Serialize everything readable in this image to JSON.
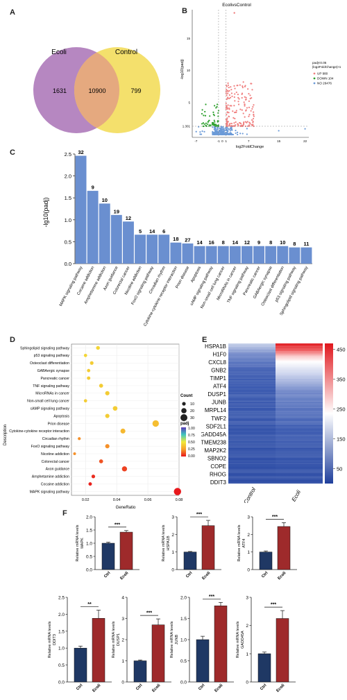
{
  "panel_labels": {
    "a": "A",
    "b": "B",
    "c": "C",
    "d": "D",
    "e": "E",
    "f": "F"
  },
  "colors": {
    "venn_ecoli": "#b687c1",
    "venn_control": "#f4e06c",
    "bar": "#6a8fd0",
    "up": "#f08080",
    "down": "#2ca02c",
    "no": "#6c9bd8",
    "ctrl": "#1f3864",
    "ecoli": "#9e2a2b"
  },
  "chart_data": [
    {
      "type": "venn",
      "sets": [
        {
          "name": "Ecoli",
          "only": 1631
        },
        {
          "name": "Control",
          "only": 799
        }
      ],
      "intersection": 10900
    },
    {
      "type": "scatter",
      "title": "EcolivsControl",
      "ylabel": "-log10(padj)",
      "xlabel": "log2FoldChange",
      "legend_title_1": "padj<0.05",
      "legend_title_2": "|log2FoldChange|>1",
      "legend": [
        {
          "label": "UP 980",
          "color": "#f08080"
        },
        {
          "label": "DOWN 104",
          "color": "#2ca02c"
        },
        {
          "label": "NO 26476",
          "color": "#6c9bd8"
        }
      ],
      "xticks": [
        "-7",
        "-1",
        "0",
        "1",
        "7",
        "15",
        "22"
      ],
      "yticks": [
        "15",
        "10",
        "5",
        "1.301"
      ],
      "legend_position": "right"
    },
    {
      "type": "bar",
      "ylabel": "-lg10(padj)",
      "ylim": [
        0,
        2.5
      ],
      "yticks": [
        "0.0",
        "0.5",
        "1.0",
        "1.5",
        "2.0",
        "2.5"
      ],
      "categories": [
        "MAPK signaling pathway",
        "Cocaine addiction",
        "Amphetamine addiction",
        "Axon guidance",
        "Colorectal cancer",
        "Nicotine addiction",
        "FoxO signaling pathway",
        "Circadian rhythm",
        "Cytokine-cytokine receptor interaction",
        "Prion disease",
        "Apoptosis",
        "cAMP signaling pathway",
        "Non-small cell lung cancer",
        "MicroRNAs in cancer",
        "TNF signaling pathway",
        "Pancreatic cancer",
        "GABAergic synapse",
        "Osteoclast differentiation",
        "p53 signaling pathway",
        "Sphingolipid signaling pathway"
      ],
      "values": [
        2.46,
        1.66,
        1.37,
        1.11,
        0.96,
        0.66,
        0.66,
        0.66,
        0.48,
        0.46,
        0.4,
        0.4,
        0.4,
        0.4,
        0.4,
        0.4,
        0.4,
        0.4,
        0.37,
        0.37
      ],
      "counts": [
        "32",
        "9",
        "10",
        "19",
        "12",
        "5",
        "14",
        "6",
        "18",
        "27",
        "14",
        "16",
        "8",
        "14",
        "12",
        "9",
        "8",
        "10",
        "8",
        "11"
      ]
    },
    {
      "type": "bubble",
      "xlabel": "GeneRatio",
      "ylabel": "Description",
      "xlim": [
        0.011,
        0.08
      ],
      "xticks": [
        0.02,
        0.04,
        0.06,
        0.08
      ],
      "xtick_labels": [
        "0.02",
        "0.04",
        "0.06",
        "0.08"
      ],
      "categories": [
        "Sphingolipid signaling pathway",
        "p53 signaling pathway",
        "Osteoclast differentiation",
        "GABAergic synapse",
        "Pancreatic cancer",
        "TNF signaling pathway",
        "MicroRNAs in cancer",
        "Non-small cell lung cancer",
        "cAMP signaling pathway",
        "Apoptosis",
        "Prion disease",
        "Cytokine-cytokine receptor interaction",
        "Circadian rhythm",
        "FoxO signaling pathway",
        "Nicotine addiction",
        "Colorectal cancer",
        "Axon guidance",
        "Amphetamine addiction",
        "Cocaine addiction",
        "MAPK signaling pathway"
      ],
      "x": [
        0.028,
        0.02,
        0.024,
        0.022,
        0.022,
        0.03,
        0.034,
        0.02,
        0.039,
        0.034,
        0.065,
        0.044,
        0.016,
        0.034,
        0.013,
        0.03,
        0.045,
        0.025,
        0.023,
        0.079
      ],
      "count": [
        11,
        8,
        10,
        8,
        9,
        12,
        14,
        8,
        16,
        14,
        27,
        18,
        6,
        14,
        5,
        12,
        19,
        10,
        9,
        32
      ],
      "padj": [
        0.43,
        0.43,
        0.4,
        0.4,
        0.4,
        0.4,
        0.4,
        0.4,
        0.4,
        0.4,
        0.35,
        0.33,
        0.22,
        0.22,
        0.22,
        0.11,
        0.08,
        0.04,
        0.02,
        0.003
      ],
      "size_legend_title": "Count",
      "size_legend": [
        "10",
        "20",
        "30"
      ],
      "color_legend_title": "padj",
      "color_legend": [
        "1.00",
        "0.75",
        "0.50",
        "0.25",
        "0.00"
      ]
    },
    {
      "type": "heatmap",
      "genes": [
        "HSPA1B",
        "H1F0",
        "CXCL8",
        "GNB2",
        "TIMP1",
        "ATF4",
        "DUSP1",
        "JUNB",
        "MRPL14",
        "TWF2",
        "SDF2L1",
        "GADD45A",
        "TMEM238",
        "MAP2K2",
        "SBNO2",
        "COPE",
        "RHOG",
        "DDIT3"
      ],
      "columns": [
        "Control",
        "Ecoli"
      ],
      "colorbar_ticks": [
        "450",
        "350",
        "250",
        "150",
        "50"
      ],
      "range": [
        0,
        470
      ]
    },
    {
      "type": "bar",
      "subtype": "bar_with_error",
      "categories": [
        "Ctrl",
        "Ecoli"
      ],
      "plots": [
        {
          "ylabel": "Relative mRNA levels\nMAPK",
          "yticks": [
            "0.0",
            "0.5",
            "1.0",
            "1.5",
            "2.0"
          ],
          "ymax": 2.0,
          "values": [
            1.0,
            1.42
          ],
          "errors": [
            0.04,
            0.06
          ],
          "sig": "***"
        },
        {
          "ylabel": "Relative mRNA levels\nHSPA1B",
          "yticks": [
            "0",
            "1",
            "2",
            "3"
          ],
          "ymax": 3,
          "values": [
            1.0,
            2.5
          ],
          "errors": [
            0.03,
            0.3
          ],
          "sig": "***"
        },
        {
          "ylabel": "Relative mRNA levels\nATF4",
          "yticks": [
            "0",
            "1",
            "2",
            "3"
          ],
          "ymax": 3,
          "values": [
            1.0,
            2.45
          ],
          "errors": [
            0.06,
            0.22
          ],
          "sig": "***"
        },
        {
          "ylabel": "Relative mRNA levels\nDDIT3",
          "yticks": [
            "0.0",
            "0.5",
            "1.0",
            "1.5",
            "2.0",
            "2.5"
          ],
          "ymax": 2.5,
          "values": [
            1.0,
            1.88
          ],
          "errors": [
            0.06,
            0.24
          ],
          "sig": "**"
        },
        {
          "ylabel": "Relative mRNA levels\nDUSP1",
          "yticks": [
            "0",
            "1",
            "2",
            "3",
            "4"
          ],
          "ymax": 4,
          "values": [
            1.0,
            2.7
          ],
          "errors": [
            0.04,
            0.28
          ],
          "sig": "***"
        },
        {
          "ylabel": "Relative mRNA levels\nJUNB",
          "yticks": [
            "0.0",
            "0.5",
            "1.0",
            "1.5",
            "2.0"
          ],
          "ymax": 2.0,
          "values": [
            1.0,
            1.8
          ],
          "errors": [
            0.08,
            0.08
          ],
          "sig": "***"
        },
        {
          "ylabel": "Relative mRNA levels\nGADD45A",
          "yticks": [
            "0",
            "1",
            "2",
            "3"
          ],
          "ymax": 3,
          "values": [
            1.0,
            2.25
          ],
          "errors": [
            0.06,
            0.28
          ],
          "sig": "***"
        }
      ]
    }
  ]
}
